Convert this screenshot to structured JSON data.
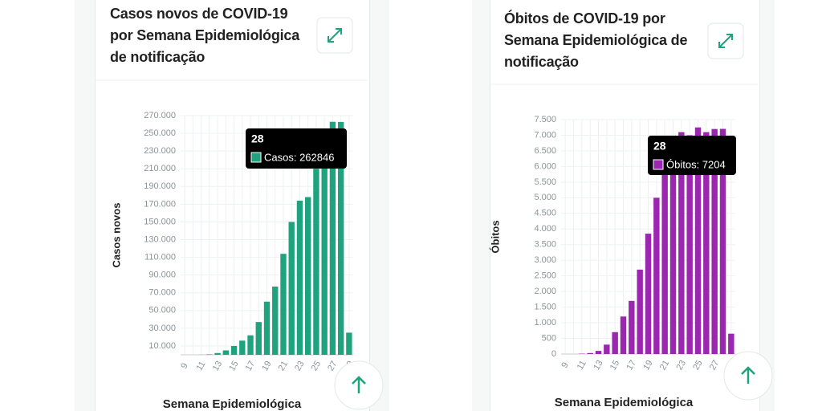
{
  "chart_data": [
    {
      "type": "bar",
      "title": "Casos novos de COVID-19 por Semana Epidemiológica de notificação",
      "y_label": "Casos novos",
      "x_label": "Semana Epidemiológica",
      "categories": [
        "9",
        null,
        "11",
        null,
        "13",
        null,
        "15",
        null,
        "17",
        null,
        "19",
        null,
        "21",
        null,
        "23",
        null,
        "25",
        null,
        "27",
        null,
        "29"
      ],
      "series": [
        {
          "name": "Casos",
          "color": "#1fa37e",
          "values": [
            0,
            0,
            100,
            500,
            2000,
            5000,
            10000,
            16000,
            22000,
            37000,
            60000,
            77000,
            114000,
            150000,
            174000,
            178000,
            210000,
            240000,
            263000,
            262846,
            25000
          ]
        }
      ],
      "ylim": [
        0,
        270000
      ],
      "yticks": [
        {
          "value": 10000,
          "label": "10.000"
        },
        {
          "value": 30000,
          "label": "30.000"
        },
        {
          "value": 50000,
          "label": "50.000"
        },
        {
          "value": 70000,
          "label": "70.000"
        },
        {
          "value": 90000,
          "label": "90.000"
        },
        {
          "value": 110000,
          "label": "110.000"
        },
        {
          "value": 130000,
          "label": "130.000"
        },
        {
          "value": 150000,
          "label": "150.000"
        },
        {
          "value": 170000,
          "label": "170.000"
        },
        {
          "value": 190000,
          "label": "190.000"
        },
        {
          "value": 210000,
          "label": "210.000"
        },
        {
          "value": 230000,
          "label": "230.000"
        },
        {
          "value": 250000,
          "label": "250.000"
        },
        {
          "value": 270000,
          "label": "270.000"
        }
      ],
      "grid": true,
      "tooltip": {
        "title": "28",
        "label": "Casos: 262846"
      }
    },
    {
      "type": "bar",
      "title": "Óbitos de COVID-19 por Semana Epidemiológica de notificação",
      "y_label": "Óbitos",
      "x_label": "Semana Epidemiológica",
      "categories": [
        "9",
        null,
        "11",
        null,
        "13",
        null,
        "15",
        null,
        "17",
        null,
        "19",
        null,
        "21",
        null,
        "23",
        null,
        "25",
        null,
        "27",
        null,
        "29"
      ],
      "series": [
        {
          "name": "Óbitos",
          "color": "#9b27b0",
          "values": [
            0,
            0,
            10,
            30,
            100,
            300,
            700,
            1200,
            1700,
            2700,
            3850,
            5000,
            6200,
            6700,
            7100,
            7000,
            7250,
            7100,
            7200,
            7204,
            650
          ]
        }
      ],
      "ylim": [
        0,
        7500
      ],
      "yticks": [
        0,
        500,
        {
          "value": 1000,
          "label": "1.000"
        },
        {
          "value": 1500,
          "label": "1.500"
        },
        {
          "value": 2000,
          "label": "2.000"
        },
        {
          "value": 2500,
          "label": "2.500"
        },
        {
          "value": 3000,
          "label": "3.000"
        },
        {
          "value": 3500,
          "label": "3.500"
        },
        {
          "value": 4000,
          "label": "4.000"
        },
        {
          "value": 4500,
          "label": "4.500"
        },
        {
          "value": 5000,
          "label": "5.000"
        },
        {
          "value": 5500,
          "label": "5.500"
        },
        {
          "value": 6000,
          "label": "6.000"
        },
        {
          "value": 6500,
          "label": "6.500"
        },
        {
          "value": 7000,
          "label": "7.000"
        },
        {
          "value": 7500,
          "label": "7.500"
        }
      ],
      "grid": true,
      "tooltip": {
        "title": "28",
        "label": "Óbitos: 7204"
      }
    }
  ]
}
